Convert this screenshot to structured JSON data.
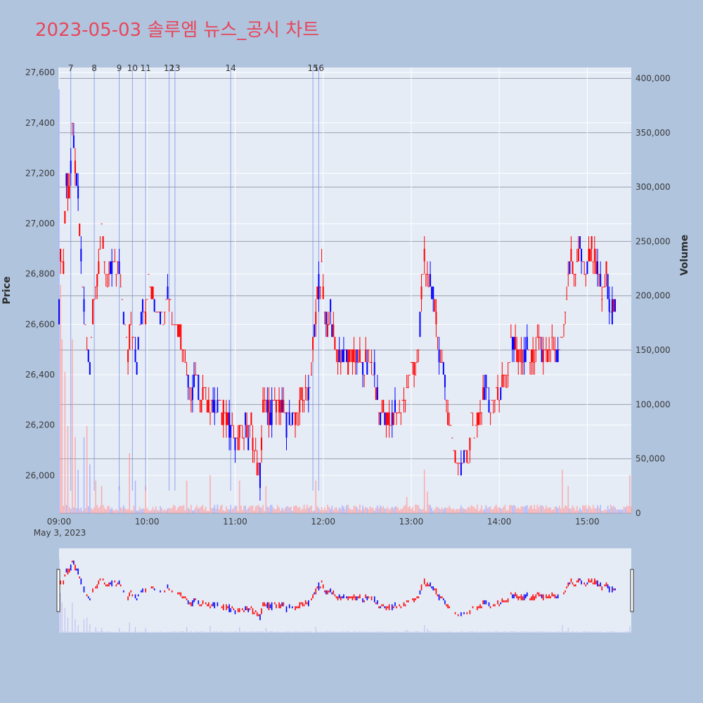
{
  "title": "2023-05-03 솔루엠 뉴스_공시 차트",
  "colors": {
    "background": "#b0c4de",
    "plot_bg": "#e5ecf6",
    "up": "#ff0000",
    "down": "#0000ff",
    "title": "#e8465a",
    "news_line": "#6f86e6"
  },
  "chart_data": {
    "type": "candlestick",
    "title": "2023-05-03 솔루엠 뉴스_공시 차트",
    "xlabel": "",
    "ylabel": "Price",
    "y2label": "Volume",
    "date_label": "May 3, 2023",
    "x_range": [
      "09:00",
      "15:30"
    ],
    "ylim": [
      25850,
      27620
    ],
    "y2lim": [
      0,
      410000
    ],
    "x_ticks": [
      "09:00",
      "10:00",
      "11:00",
      "12:00",
      "13:00",
      "14:00",
      "15:00"
    ],
    "y_ticks": [
      "26,000",
      "26,200",
      "26,400",
      "26,600",
      "26,800",
      "27,000",
      "27,200",
      "27,400",
      "27,600"
    ],
    "y2_ticks": [
      "0",
      "50,000",
      "100,000",
      "150,000",
      "200,000",
      "250,000",
      "300,000",
      "350,000",
      "400,000"
    ],
    "news_markers": [
      {
        "label": "7",
        "time": "09:08"
      },
      {
        "label": "8",
        "time": "09:24"
      },
      {
        "label": "9",
        "time": "09:41"
      },
      {
        "label": "10",
        "time": "09:50"
      },
      {
        "label": "11",
        "time": "09:59"
      },
      {
        "label": "12",
        "time": "10:15"
      },
      {
        "label": "13",
        "time": "10:19"
      },
      {
        "label": "14",
        "time": "10:57"
      },
      {
        "label": "15",
        "time": "11:53"
      },
      {
        "label": "16",
        "time": "11:57"
      }
    ],
    "price_path": [
      [
        "09:00",
        26650
      ],
      [
        "09:01",
        26900
      ],
      [
        "09:03",
        26800
      ],
      [
        "09:05",
        27200
      ],
      [
        "09:07",
        27100
      ],
      [
        "09:09",
        27350
      ],
      [
        "09:11",
        27250
      ],
      [
        "09:13",
        27100
      ],
      [
        "09:15",
        26850
      ],
      [
        "09:17",
        26700
      ],
      [
        "09:19",
        26500
      ],
      [
        "09:21",
        26450
      ],
      [
        "09:23",
        26650
      ],
      [
        "09:25",
        26750
      ],
      [
        "09:27",
        26850
      ],
      [
        "09:29",
        26950
      ],
      [
        "09:31",
        26850
      ],
      [
        "09:33",
        26750
      ],
      [
        "09:35",
        26800
      ],
      [
        "09:37",
        26850
      ],
      [
        "09:39",
        26800
      ],
      [
        "09:41",
        26850
      ],
      [
        "09:43",
        26700
      ],
      [
        "09:45",
        26600
      ],
      [
        "09:47",
        26500
      ],
      [
        "09:49",
        26600
      ],
      [
        "09:51",
        26550
      ],
      [
        "09:53",
        26450
      ],
      [
        "09:55",
        26600
      ],
      [
        "09:57",
        26700
      ],
      [
        "09:59",
        26650
      ],
      [
        "10:01",
        26800
      ],
      [
        "10:03",
        26750
      ],
      [
        "10:05",
        26700
      ],
      [
        "10:07",
        26650
      ],
      [
        "10:09",
        26650
      ],
      [
        "10:11",
        26650
      ],
      [
        "10:13",
        26700
      ],
      [
        "10:15",
        26750
      ],
      [
        "10:17",
        26650
      ],
      [
        "10:19",
        26600
      ],
      [
        "10:21",
        26600
      ],
      [
        "10:23",
        26550
      ],
      [
        "10:25",
        26500
      ],
      [
        "10:27",
        26400
      ],
      [
        "10:29",
        26300
      ],
      [
        "10:31",
        26350
      ],
      [
        "10:33",
        26400
      ],
      [
        "10:35",
        26350
      ],
      [
        "10:37",
        26300
      ],
      [
        "10:39",
        26350
      ],
      [
        "10:41",
        26300
      ],
      [
        "10:43",
        26250
      ],
      [
        "10:45",
        26300
      ],
      [
        "10:47",
        26250
      ],
      [
        "10:49",
        26300
      ],
      [
        "10:51",
        26250
      ],
      [
        "10:53",
        26250
      ],
      [
        "10:55",
        26200
      ],
      [
        "10:57",
        26200
      ],
      [
        "10:59",
        26150
      ],
      [
        "11:01",
        26100
      ],
      [
        "11:03",
        26200
      ],
      [
        "11:05",
        26150
      ],
      [
        "11:07",
        26200
      ],
      [
        "11:09",
        26150
      ],
      [
        "11:11",
        26200
      ],
      [
        "11:13",
        26100
      ],
      [
        "11:15",
        26050
      ],
      [
        "11:17",
        26000
      ],
      [
        "11:19",
        26250
      ],
      [
        "11:21",
        26300
      ],
      [
        "11:23",
        26250
      ],
      [
        "11:25",
        26250
      ],
      [
        "11:27",
        26300
      ],
      [
        "11:29",
        26250
      ],
      [
        "11:31",
        26300
      ],
      [
        "11:33",
        26250
      ],
      [
        "11:35",
        26200
      ],
      [
        "11:37",
        26250
      ],
      [
        "11:39",
        26200
      ],
      [
        "11:41",
        26250
      ],
      [
        "11:43",
        26250
      ],
      [
        "11:45",
        26300
      ],
      [
        "11:47",
        26300
      ],
      [
        "11:49",
        26350
      ],
      [
        "11:51",
        26300
      ],
      [
        "11:53",
        26500
      ],
      [
        "11:55",
        26650
      ],
      [
        "11:57",
        26750
      ],
      [
        "11:59",
        26800
      ],
      [
        "12:01",
        26650
      ],
      [
        "12:03",
        26600
      ],
      [
        "12:05",
        26650
      ],
      [
        "12:07",
        26550
      ],
      [
        "12:09",
        26500
      ],
      [
        "12:11",
        26500
      ],
      [
        "12:13",
        26450
      ],
      [
        "12:15",
        26500
      ],
      [
        "12:17",
        26450
      ],
      [
        "12:19",
        26500
      ],
      [
        "12:21",
        26450
      ],
      [
        "12:23",
        26450
      ],
      [
        "12:25",
        26450
      ],
      [
        "12:27",
        26400
      ],
      [
        "12:29",
        26450
      ],
      [
        "12:31",
        26450
      ],
      [
        "12:33",
        26450
      ],
      [
        "12:35",
        26400
      ],
      [
        "12:37",
        26300
      ],
      [
        "12:39",
        26250
      ],
      [
        "12:41",
        26250
      ],
      [
        "12:43",
        26200
      ],
      [
        "12:45",
        26250
      ],
      [
        "12:47",
        26200
      ],
      [
        "12:49",
        26250
      ],
      [
        "12:51",
        26250
      ],
      [
        "12:53",
        26250
      ],
      [
        "12:55",
        26300
      ],
      [
        "12:57",
        26350
      ],
      [
        "12:59",
        26400
      ],
      [
        "13:01",
        26450
      ],
      [
        "13:03",
        26400
      ],
      [
        "13:05",
        26500
      ],
      [
        "13:07",
        26700
      ],
      [
        "13:09",
        26850
      ],
      [
        "13:11",
        26800
      ],
      [
        "13:13",
        26750
      ],
      [
        "13:15",
        26700
      ],
      [
        "13:17",
        26600
      ],
      [
        "13:19",
        26500
      ],
      [
        "13:21",
        26450
      ],
      [
        "13:23",
        26350
      ],
      [
        "13:25",
        26250
      ],
      [
        "13:27",
        26200
      ],
      [
        "13:29",
        26100
      ],
      [
        "13:31",
        26050
      ],
      [
        "13:33",
        26050
      ],
      [
        "13:35",
        26050
      ],
      [
        "13:37",
        26100
      ],
      [
        "13:39",
        26050
      ],
      [
        "13:41",
        26250
      ],
      [
        "13:43",
        26150
      ],
      [
        "13:45",
        26200
      ],
      [
        "13:47",
        26250
      ],
      [
        "13:49",
        26300
      ],
      [
        "13:51",
        26350
      ],
      [
        "13:53",
        26300
      ],
      [
        "13:55",
        26250
      ],
      [
        "13:57",
        26300
      ],
      [
        "13:59",
        26350
      ],
      [
        "14:01",
        26300
      ],
      [
        "14:03",
        26400
      ],
      [
        "14:05",
        26350
      ],
      [
        "14:07",
        26450
      ],
      [
        "14:09",
        26550
      ],
      [
        "14:11",
        26500
      ],
      [
        "14:13",
        26450
      ],
      [
        "14:15",
        26500
      ],
      [
        "14:17",
        26450
      ],
      [
        "14:19",
        26500
      ],
      [
        "14:21",
        26450
      ],
      [
        "14:23",
        26450
      ],
      [
        "14:25",
        26500
      ],
      [
        "14:27",
        26550
      ],
      [
        "14:29",
        26450
      ],
      [
        "14:31",
        26500
      ],
      [
        "14:33",
        26450
      ],
      [
        "14:35",
        26500
      ],
      [
        "14:37",
        26500
      ],
      [
        "14:39",
        26450
      ],
      [
        "14:41",
        26500
      ],
      [
        "14:43",
        26550
      ],
      [
        "14:45",
        26650
      ],
      [
        "14:47",
        26800
      ],
      [
        "14:49",
        26850
      ],
      [
        "14:51",
        26800
      ],
      [
        "14:53",
        26850
      ],
      [
        "14:55",
        26900
      ],
      [
        "14:57",
        26850
      ],
      [
        "14:59",
        26800
      ],
      [
        "15:01",
        26850
      ],
      [
        "15:03",
        26900
      ],
      [
        "15:05",
        26850
      ],
      [
        "15:07",
        26800
      ],
      [
        "15:09",
        26750
      ],
      [
        "15:11",
        26700
      ],
      [
        "15:13",
        26800
      ],
      [
        "15:15",
        26700
      ],
      [
        "15:17",
        26650
      ],
      [
        "15:19",
        26650
      ],
      [
        "15:20",
        26650
      ]
    ],
    "volume_peaks": [
      [
        "09:00",
        390000
      ],
      [
        "09:01",
        210000
      ],
      [
        "09:02",
        160000
      ],
      [
        "09:04",
        130000
      ],
      [
        "09:06",
        80000
      ],
      [
        "09:09",
        160000
      ],
      [
        "09:11",
        70000
      ],
      [
        "09:13",
        40000
      ],
      [
        "09:17",
        70000
      ],
      [
        "09:19",
        80000
      ],
      [
        "09:21",
        45000
      ],
      [
        "09:25",
        30000
      ],
      [
        "09:29",
        25000
      ],
      [
        "09:41",
        25000
      ],
      [
        "09:48",
        55000
      ],
      [
        "09:52",
        30000
      ],
      [
        "09:59",
        25000
      ],
      [
        "10:27",
        30000
      ],
      [
        "10:43",
        35000
      ],
      [
        "11:03",
        30000
      ],
      [
        "11:21",
        25000
      ],
      [
        "11:55",
        30000
      ],
      [
        "12:57",
        15000
      ],
      [
        "13:09",
        40000
      ],
      [
        "13:11",
        20000
      ],
      [
        "14:43",
        40000
      ],
      [
        "14:47",
        25000
      ],
      [
        "15:29",
        35000
      ]
    ]
  }
}
